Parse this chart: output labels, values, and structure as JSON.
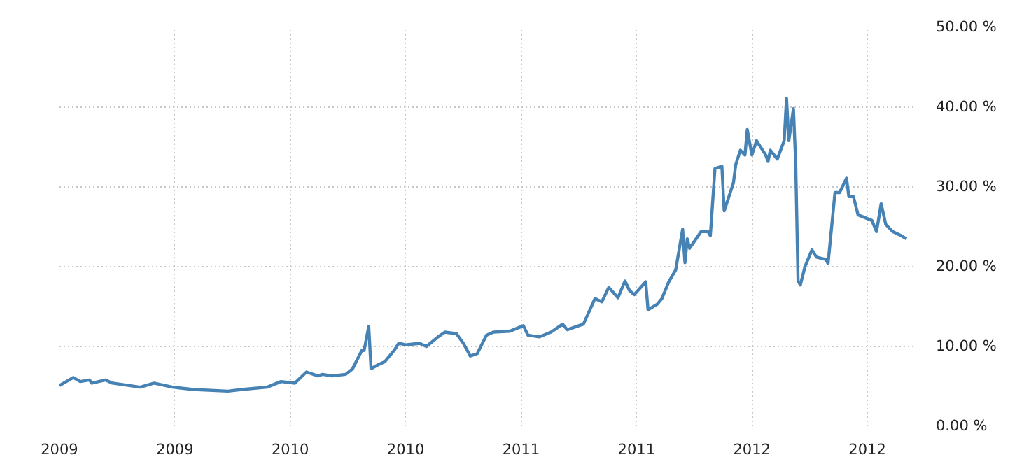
{
  "chart_data": {
    "type": "line",
    "x": [
      2009.0,
      2009.06,
      2009.09,
      2009.13,
      2009.14,
      2009.2,
      2009.23,
      2009.35,
      2009.41,
      2009.49,
      2009.58,
      2009.73,
      2009.79,
      2009.9,
      2009.96,
      2010.02,
      2010.07,
      2010.12,
      2010.14,
      2010.18,
      2010.24,
      2010.27,
      2010.31,
      2010.32,
      2010.34,
      2010.35,
      2010.38,
      2010.41,
      2010.45,
      2010.47,
      2010.5,
      2010.56,
      2010.59,
      2010.64,
      2010.67,
      2010.72,
      2010.75,
      2010.78,
      2010.81,
      2010.85,
      2010.88,
      2010.95,
      2011.01,
      2011.03,
      2011.08,
      2011.13,
      2011.18,
      2011.2,
      2011.25,
      2011.27,
      2011.3,
      2011.32,
      2011.35,
      2011.38,
      2011.42,
      2011.45,
      2011.47,
      2011.49,
      2011.54,
      2011.55,
      2011.59,
      2011.61,
      2011.64,
      2011.67,
      2011.7,
      2011.71,
      2011.72,
      2011.73,
      2011.78,
      2011.81,
      2011.82,
      2011.84,
      2011.87,
      2011.88,
      2011.92,
      2011.93,
      2011.95,
      2011.97,
      2011.98,
      2012.0,
      2012.02,
      2012.06,
      2012.07,
      2012.08,
      2012.11,
      2012.14,
      2012.15,
      2012.16,
      2012.18,
      2012.19,
      2012.2,
      2012.21,
      2012.23,
      2012.26,
      2012.28,
      2012.32,
      2012.33,
      2012.36,
      2012.38,
      2012.41,
      2012.42,
      2012.44,
      2012.46,
      2012.52,
      2012.54,
      2012.56,
      2012.58,
      2012.61,
      2012.64,
      2012.67
    ],
    "series": [
      {
        "color": "#4682b4",
        "values": [
          5.1,
          6.1,
          5.6,
          5.8,
          5.4,
          5.8,
          5.4,
          4.9,
          5.4,
          4.9,
          4.6,
          4.4,
          4.6,
          4.9,
          5.6,
          5.4,
          6.8,
          6.3,
          6.5,
          6.3,
          6.5,
          7.2,
          9.5,
          9.5,
          12.5,
          7.2,
          7.7,
          8.1,
          9.5,
          10.4,
          10.2,
          10.4,
          10.0,
          11.2,
          11.8,
          11.6,
          10.4,
          8.8,
          9.1,
          11.4,
          11.8,
          11.9,
          12.6,
          11.4,
          11.2,
          11.8,
          12.8,
          12.1,
          12.6,
          12.8,
          14.7,
          16.0,
          15.6,
          17.4,
          16.1,
          18.2,
          17.0,
          16.5,
          18.1,
          14.6,
          15.3,
          16.0,
          18.1,
          19.6,
          24.7,
          20.5,
          23.5,
          22.3,
          24.4,
          24.4,
          23.9,
          32.3,
          32.6,
          27.0,
          30.5,
          32.8,
          34.6,
          34.0,
          37.2,
          34.0,
          35.8,
          34.0,
          33.2,
          34.6,
          33.5,
          35.8,
          41.1,
          35.8,
          39.8,
          32.8,
          18.2,
          17.7,
          20.0,
          22.1,
          21.2,
          20.9,
          20.4,
          29.3,
          29.3,
          31.1,
          28.8,
          28.8,
          26.5,
          25.8,
          24.4,
          27.9,
          25.3,
          24.4,
          24.0,
          23.5
        ]
      }
    ],
    "xlim": [
      2009.0,
      2012.7
    ],
    "xticks": [
      {
        "value": 2009.0,
        "label": "2009"
      },
      {
        "value": 2009.5,
        "label": "2009"
      },
      {
        "value": 2010.0,
        "label": "2010"
      },
      {
        "value": 2010.5,
        "label": "2010"
      },
      {
        "value": 2011.0,
        "label": "2011"
      },
      {
        "value": 2011.5,
        "label": "2011"
      },
      {
        "value": 2012.0,
        "label": "2012"
      },
      {
        "value": 2012.5,
        "label": "2012"
      }
    ],
    "ylim": [
      0,
      50
    ],
    "yticks": [
      {
        "value": 0,
        "label": "0.00 %"
      },
      {
        "value": 10,
        "label": "10.00 %"
      },
      {
        "value": 20,
        "label": "20.00 %"
      },
      {
        "value": 30,
        "label": "30.00 %"
      },
      {
        "value": 40,
        "label": "40.00 %"
      },
      {
        "value": 50,
        "label": "50.00 %"
      }
    ],
    "grid": true,
    "line_style": "solid",
    "marker": "none"
  }
}
